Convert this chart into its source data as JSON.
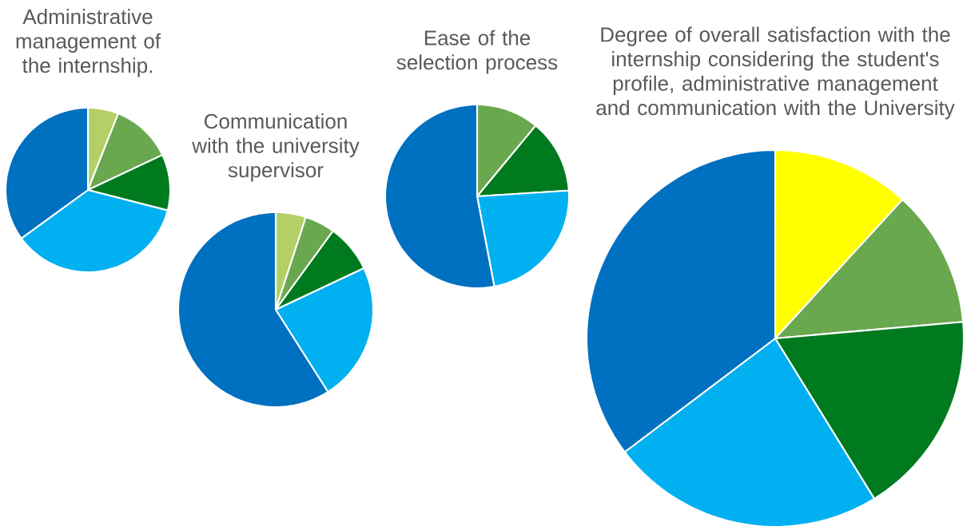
{
  "chart_data": [
    {
      "type": "pie",
      "title": "Administrative management of the internship.",
      "categories": [
        null,
        null,
        null,
        null,
        null
      ],
      "values": [
        6,
        12,
        11,
        36,
        35
      ],
      "colors": [
        "#b4cf66",
        "#6aa84f",
        "#007a1f",
        "#00b0f0",
        "#0070c0"
      ]
    },
    {
      "type": "pie",
      "title": "Communication with the university supervisor",
      "categories": [
        null,
        null,
        null,
        null,
        null
      ],
      "values": [
        5,
        5,
        8,
        23,
        59
      ],
      "colors": [
        "#b4cf66",
        "#6aa84f",
        "#007a1f",
        "#00b0f0",
        "#0070c0"
      ]
    },
    {
      "type": "pie",
      "title": "Ease of the selection process",
      "categories": [
        null,
        null,
        null,
        null
      ],
      "values": [
        11,
        13,
        23,
        53
      ],
      "colors": [
        "#6aa84f",
        "#007a1f",
        "#00b0f0",
        "#0070c0"
      ]
    },
    {
      "type": "pie",
      "title": "Degree of overall satisfaction with the internship considering the student's profile, administrative management and communication with the University",
      "categories": [
        null,
        null,
        null,
        null,
        null
      ],
      "values": [
        11.8,
        11.8,
        17.6,
        23.5,
        35.3
      ],
      "colors": [
        "#ffff00",
        "#6aa84f",
        "#007a1f",
        "#00b0f0",
        "#0070c0"
      ]
    }
  ]
}
